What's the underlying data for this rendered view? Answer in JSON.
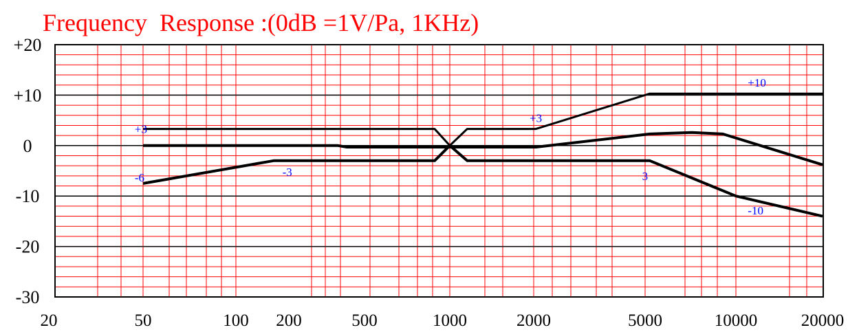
{
  "chart_data": {
    "type": "line",
    "title": "Frequency  Response :(0dB =1V/Pa, 1KHz)",
    "xscale": "log",
    "x_tick_labels": [
      "20",
      "50",
      "100",
      "200",
      "500",
      "1000",
      "2000",
      "5000",
      "10000",
      "20000"
    ],
    "y_tick_labels": [
      "+20",
      "+10",
      "0",
      "-10",
      "-20",
      "-30"
    ],
    "y_ticks": [
      20,
      10,
      0,
      -10,
      -20,
      -30
    ],
    "xlim": [
      20,
      20000
    ],
    "ylim": [
      -30,
      20
    ],
    "grid": true,
    "colors": {
      "grid": "#ff0000",
      "title": "#ff0000",
      "curves": "#000000",
      "annotations": "#0000ff",
      "axes": "#000000"
    },
    "series": [
      {
        "x": [
          50,
          850,
          1000,
          1150,
          2000,
          5000,
          20000
        ],
        "y": [
          3.3,
          3.3,
          0,
          3.3,
          3.3,
          10.3,
          10.3
        ]
      },
      {
        "x": [
          50,
          300,
          330,
          1000,
          2000,
          5000,
          7000,
          9000,
          20000
        ],
        "y": [
          0,
          0,
          -0.3,
          -0.3,
          -0.3,
          2.3,
          2.6,
          2.3,
          -3.8
        ]
      },
      {
        "x": [
          50,
          150,
          850,
          1000,
          1150,
          5000,
          10000,
          20000
        ],
        "y": [
          -7.5,
          -3,
          -3,
          0,
          -3,
          -3,
          -10,
          -14
        ]
      }
    ],
    "annotations": [
      {
        "text": "+3",
        "x": 47,
        "y": 3.3
      },
      {
        "text": "-6",
        "x": 47,
        "y": -6.3
      },
      {
        "text": "-3",
        "x": 165,
        "y": -5.2
      },
      {
        "text": "+3",
        "x": 1900,
        "y": 5.5
      },
      {
        "text": "3",
        "x": 4700,
        "y": -6
      },
      {
        "text": "+10",
        "x": 11000,
        "y": 12.5
      },
      {
        "text": "-10",
        "x": 11000,
        "y": -12.8
      }
    ]
  }
}
